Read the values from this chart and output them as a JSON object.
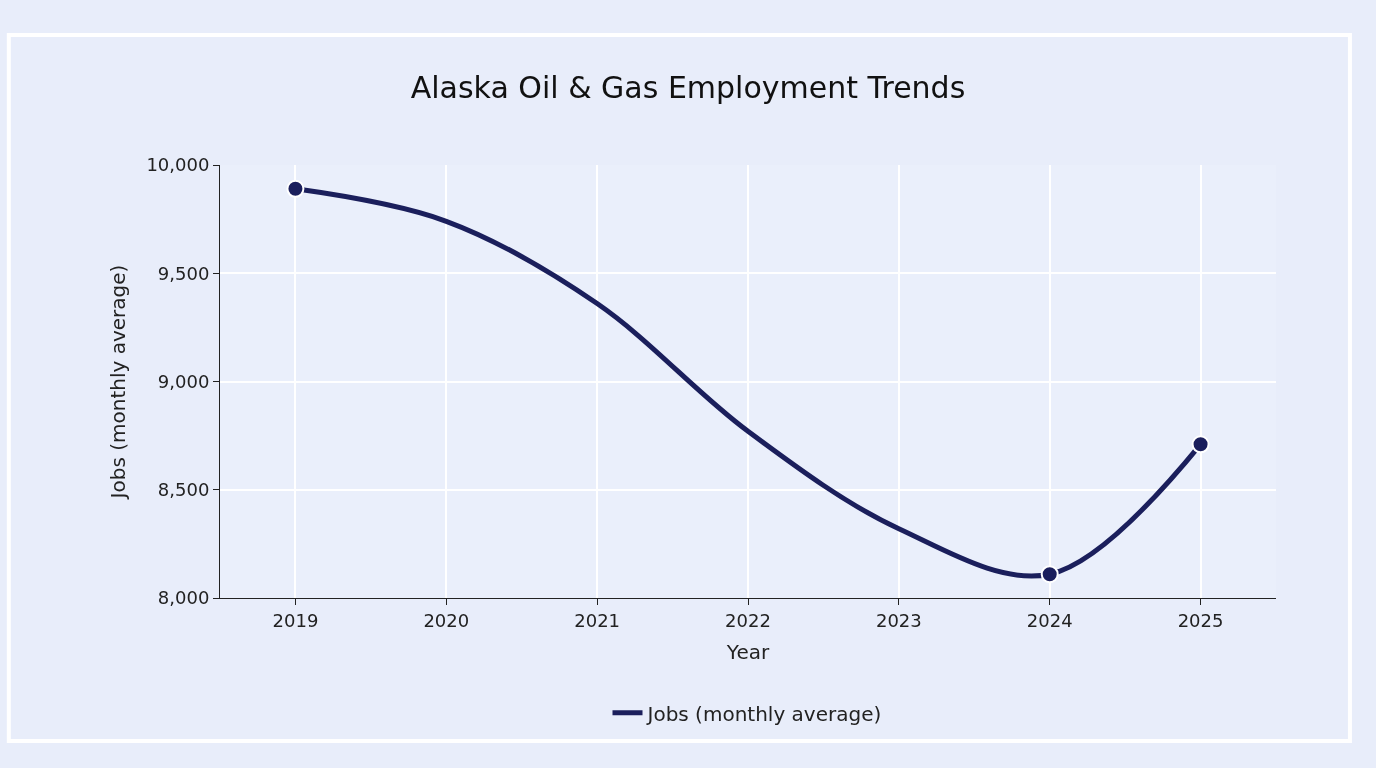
{
  "chart_data": {
    "type": "line",
    "title": "Alaska Oil & Gas Employment Trends",
    "xlabel": "Year",
    "ylabel": "Jobs (monthly average)",
    "x": [
      2019,
      2020,
      2021,
      2022,
      2023,
      2024,
      2025
    ],
    "series": [
      {
        "name": "Jobs (monthly average)",
        "color": "#1b1f5c",
        "values": [
          9890,
          9740,
          9360,
          8770,
          8320,
          8110,
          8710
        ],
        "marker": "none"
      },
      {
        "type": "scatter",
        "color": "#1b1f5c",
        "x": [
          2019,
          2024,
          2025
        ],
        "values": [
          9890,
          8110,
          8710
        ],
        "marker": "circle"
      }
    ],
    "xlim": [
      2018.5,
      2025.5
    ],
    "xticks": [
      2019,
      2020,
      2021,
      2022,
      2023,
      2024,
      2025
    ],
    "ylim": [
      8000,
      10000
    ],
    "yticks": [
      {
        "value": 8000,
        "label": "8,000"
      },
      {
        "value": 8500,
        "label": "8,500"
      },
      {
        "value": 9000,
        "label": "9,000"
      },
      {
        "value": 9500,
        "label": "9,500"
      },
      {
        "value": 10000,
        "label": "10,000"
      }
    ],
    "grid": true,
    "legend": "bottom"
  }
}
